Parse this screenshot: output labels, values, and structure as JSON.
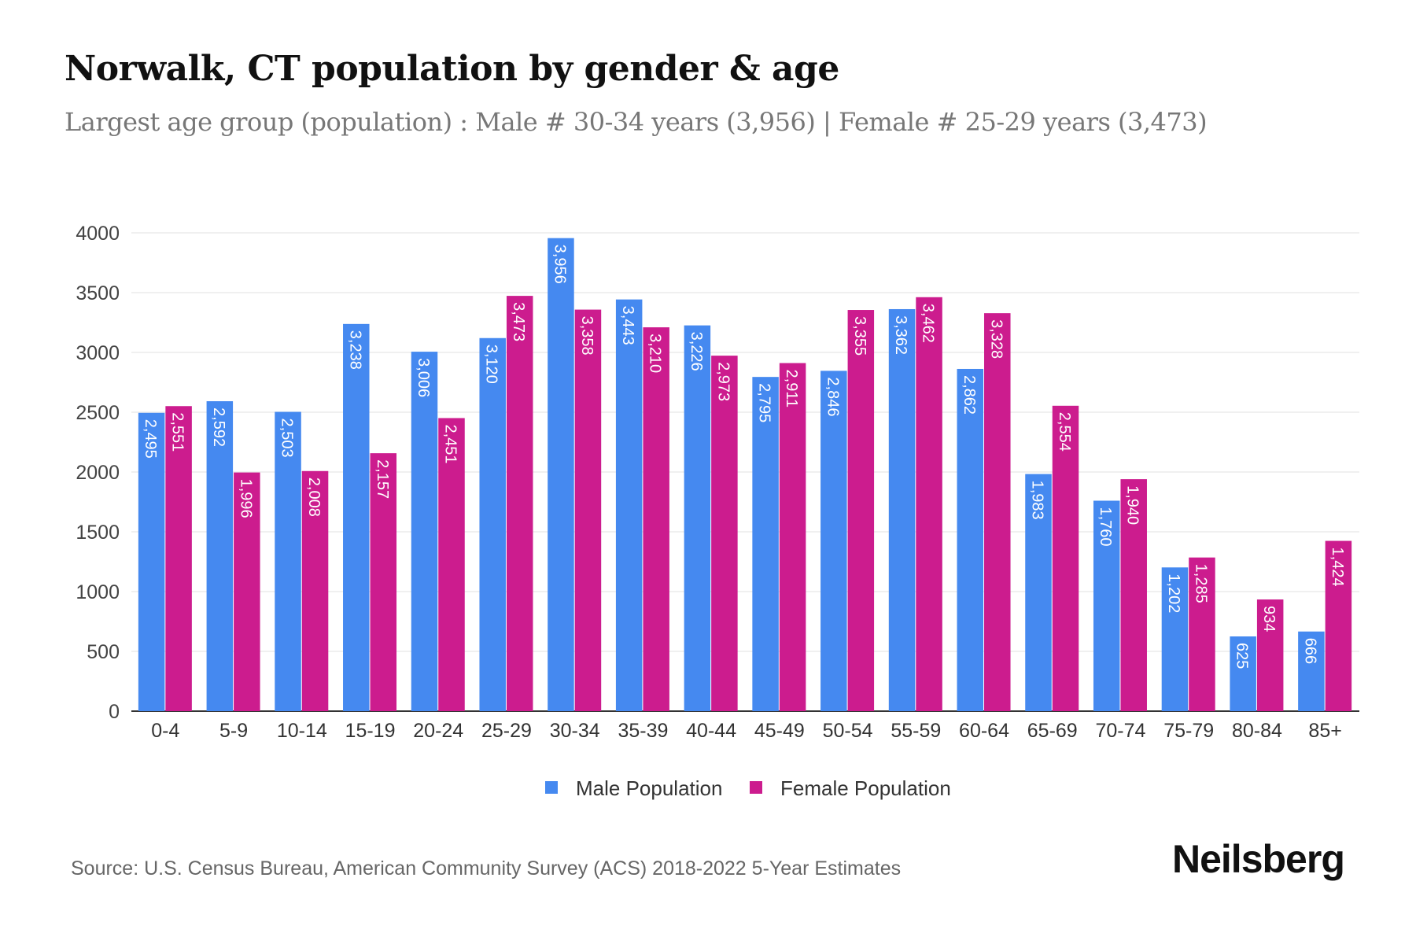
{
  "chart_data": {
    "type": "bar",
    "title": "Norwalk, CT population by gender & age",
    "subtitle": "Largest age group (population) : Male # 30-34 years (3,956) | Female # 25-29 years (3,473)",
    "xlabel": "",
    "ylabel": "",
    "ylim": [
      0,
      4000
    ],
    "yticks": [
      0,
      500,
      1000,
      1500,
      2000,
      2500,
      3000,
      3500,
      4000
    ],
    "grid": true,
    "legend_placement": "bottom-center",
    "categories": [
      "0-4",
      "5-9",
      "10-14",
      "15-19",
      "20-24",
      "25-29",
      "30-34",
      "35-39",
      "40-44",
      "45-49",
      "50-54",
      "55-59",
      "60-64",
      "65-69",
      "70-74",
      "75-79",
      "80-84",
      "85+"
    ],
    "series": [
      {
        "name": "Male Population",
        "color": "#4589f0",
        "values": [
          2495,
          2592,
          2503,
          3238,
          3006,
          3120,
          3956,
          3443,
          3226,
          2795,
          2846,
          3362,
          2862,
          1983,
          1760,
          1202,
          625,
          666
        ]
      },
      {
        "name": "Female Population",
        "color": "#cc1c8e",
        "values": [
          2551,
          1996,
          2008,
          2157,
          2451,
          3473,
          3358,
          3210,
          2973,
          2911,
          3355,
          3462,
          3328,
          2554,
          1940,
          1285,
          934,
          1424
        ]
      }
    ]
  },
  "source": "Source: U.S. Census Bureau, American Community Survey (ACS) 2018-2022 5-Year Estimates",
  "logo": "Neilsberg"
}
